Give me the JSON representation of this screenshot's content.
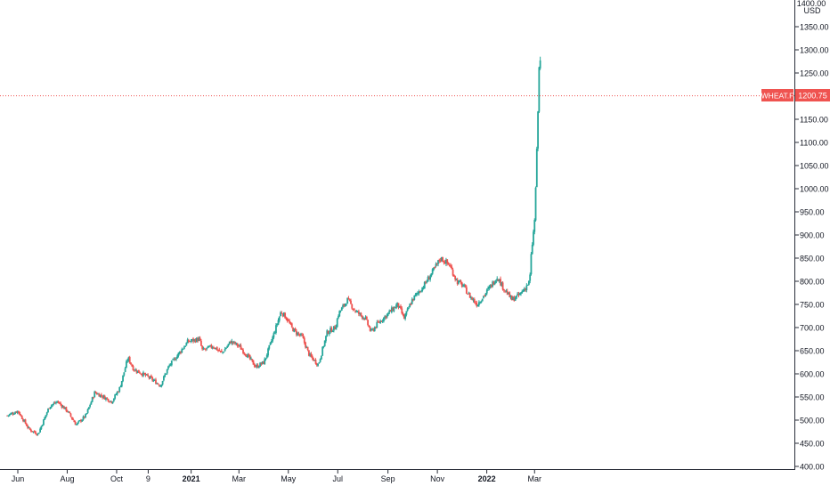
{
  "chart_data": {
    "type": "candlestick",
    "symbol": "WHEAT.F",
    "currency": "USD",
    "last_price": "1200.75",
    "last_value": 1200.75,
    "y_axis_top_label": "1400.00",
    "ylim": [
      400,
      1400
    ],
    "y_ticks": [
      {
        "value": 400,
        "label": "400.00"
      },
      {
        "value": 450,
        "label": "450.00"
      },
      {
        "value": 500,
        "label": "500.00"
      },
      {
        "value": 550,
        "label": "550.00"
      },
      {
        "value": 600,
        "label": "600.00"
      },
      {
        "value": 650,
        "label": "650.00"
      },
      {
        "value": 700,
        "label": "700.00"
      },
      {
        "value": 750,
        "label": "750.00"
      },
      {
        "value": 800,
        "label": "800.00"
      },
      {
        "value": 850,
        "label": "850.00"
      },
      {
        "value": 900,
        "label": "900.00"
      },
      {
        "value": 950,
        "label": "950.00"
      },
      {
        "value": 1000,
        "label": "1000.00"
      },
      {
        "value": 1050,
        "label": "1050.00"
      },
      {
        "value": 1100,
        "label": "1100.00"
      },
      {
        "value": 1150,
        "label": "1150.00"
      },
      {
        "value": 1200,
        "label": "1200.00"
      },
      {
        "value": 1250,
        "label": "1250.00"
      },
      {
        "value": 1300,
        "label": "1300.00"
      },
      {
        "value": 1350,
        "label": "1350.00"
      }
    ],
    "x_ticks": [
      {
        "date": "2020-06-01",
        "label": "Jun",
        "bold": false
      },
      {
        "date": "2020-08-01",
        "label": "Aug",
        "bold": false
      },
      {
        "date": "2020-10-01",
        "label": "Oct",
        "bold": false
      },
      {
        "date": "2020-11-09",
        "label": "9",
        "bold": false
      },
      {
        "date": "2021-01-01",
        "label": "2021",
        "bold": true
      },
      {
        "date": "2021-03-01",
        "label": "Mar",
        "bold": false
      },
      {
        "date": "2021-05-01",
        "label": "May",
        "bold": false
      },
      {
        "date": "2021-07-01",
        "label": "Jul",
        "bold": false
      },
      {
        "date": "2021-09-01",
        "label": "Sep",
        "bold": false
      },
      {
        "date": "2021-11-01",
        "label": "Nov",
        "bold": false
      },
      {
        "date": "2022-01-01",
        "label": "2022",
        "bold": true
      },
      {
        "date": "2022-03-01",
        "label": "Mar",
        "bold": false
      }
    ],
    "close_series": {
      "dates": [
        "2020-05-19",
        "2020-06-01",
        "2020-06-15",
        "2020-06-26",
        "2020-07-10",
        "2020-07-20",
        "2020-08-01",
        "2020-08-12",
        "2020-08-24",
        "2020-09-04",
        "2020-09-15",
        "2020-09-25",
        "2020-10-05",
        "2020-10-15",
        "2020-10-22",
        "2020-11-02",
        "2020-11-12",
        "2020-11-24",
        "2020-12-04",
        "2020-12-15",
        "2020-12-28",
        "2021-01-11",
        "2021-01-15",
        "2021-01-28",
        "2021-02-08",
        "2021-02-19",
        "2021-03-01",
        "2021-03-11",
        "2021-03-22",
        "2021-04-01",
        "2021-04-12",
        "2021-04-22",
        "2021-04-29",
        "2021-05-05",
        "2021-05-10",
        "2021-05-18",
        "2021-05-27",
        "2021-06-07",
        "2021-06-18",
        "2021-06-28",
        "2021-07-02",
        "2021-07-13",
        "2021-07-23",
        "2021-08-04",
        "2021-08-11",
        "2021-08-20",
        "2021-09-01",
        "2021-09-13",
        "2021-09-21",
        "2021-10-01",
        "2021-10-15",
        "2021-10-26",
        "2021-11-05",
        "2021-11-16",
        "2021-11-25",
        "2021-12-03",
        "2021-12-10",
        "2021-12-20",
        "2021-12-31",
        "2022-01-14",
        "2022-01-20",
        "2022-02-01",
        "2022-02-10",
        "2022-02-17",
        "2022-02-23",
        "2022-02-25",
        "2022-03-01",
        "2022-03-03",
        "2022-03-04",
        "2022-03-07",
        "2022-03-08",
        "2022-03-09"
      ],
      "values": [
        510,
        520,
        480,
        470,
        530,
        540,
        520,
        490,
        510,
        560,
        550,
        540,
        570,
        635,
        610,
        600,
        590,
        575,
        615,
        640,
        670,
        675,
        650,
        660,
        645,
        670,
        660,
        640,
        615,
        625,
        680,
        735,
        720,
        700,
        690,
        680,
        640,
        620,
        690,
        700,
        730,
        760,
        735,
        720,
        690,
        710,
        730,
        750,
        720,
        760,
        790,
        820,
        850,
        835,
        800,
        790,
        770,
        750,
        775,
        810,
        790,
        760,
        770,
        785,
        800,
        860,
        930,
        1035,
        1090,
        1285,
        1280,
        1200.75
      ]
    }
  }
}
